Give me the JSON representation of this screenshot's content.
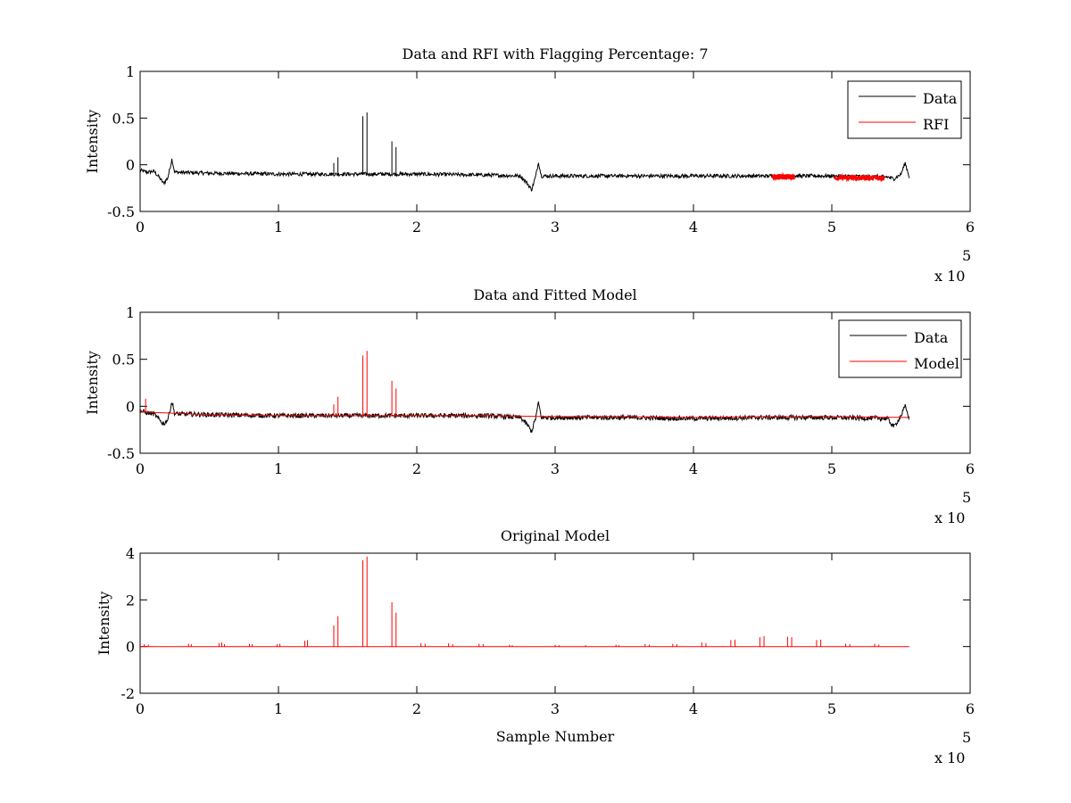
{
  "figure": {
    "exponent_label": "x 10",
    "exponent_power": "5"
  },
  "chart_data": [
    {
      "type": "line",
      "title": "Data and RFI with Flagging Percentage: 7",
      "xlabel": "",
      "ylabel": "Intensity",
      "xlim": [
        0,
        6
      ],
      "ylim": [
        -0.5,
        1
      ],
      "x_ticks": [
        "0",
        "1",
        "2",
        "3",
        "4",
        "5",
        "6"
      ],
      "y_ticks": [
        "-0.5",
        "0",
        "0.5",
        "1"
      ],
      "x_scale_note": "x 10^5",
      "grid": false,
      "legend_position": "top-right",
      "legend": [
        {
          "label": "Data",
          "color": "#000000"
        },
        {
          "label": "RFI",
          "color": "#ff0000"
        }
      ],
      "series": [
        {
          "name": "Data",
          "color": "#000000",
          "baseline": [
            [
              0.0,
              -0.06
            ],
            [
              0.05,
              -0.08
            ],
            [
              0.1,
              -0.07
            ],
            [
              0.13,
              -0.12
            ],
            [
              0.17,
              -0.2
            ],
            [
              0.2,
              -0.14
            ],
            [
              0.23,
              0.06
            ],
            [
              0.25,
              -0.08
            ],
            [
              0.5,
              -0.09
            ],
            [
              1.0,
              -0.1
            ],
            [
              1.5,
              -0.1
            ],
            [
              2.0,
              -0.1
            ],
            [
              2.5,
              -0.11
            ],
            [
              2.75,
              -0.12
            ],
            [
              2.8,
              -0.2
            ],
            [
              2.83,
              -0.27
            ],
            [
              2.86,
              -0.12
            ],
            [
              2.88,
              0.03
            ],
            [
              2.9,
              -0.12
            ],
            [
              3.5,
              -0.12
            ],
            [
              4.0,
              -0.12
            ],
            [
              4.5,
              -0.12
            ],
            [
              5.0,
              -0.12
            ],
            [
              5.4,
              -0.13
            ],
            [
              5.45,
              -0.15
            ],
            [
              5.5,
              -0.1
            ],
            [
              5.53,
              0.02
            ],
            [
              5.56,
              -0.13
            ]
          ],
          "noise": 0.02,
          "spikes": [
            [
              1.4,
              0.02
            ],
            [
              1.43,
              0.08
            ],
            [
              1.61,
              0.52
            ],
            [
              1.64,
              0.56
            ],
            [
              1.82,
              0.25
            ],
            [
              1.85,
              0.19
            ]
          ]
        },
        {
          "name": "RFI",
          "color": "#ff0000",
          "segments": [
            [
              4.57,
              4.73,
              -0.13
            ],
            [
              5.02,
              5.38,
              -0.14
            ]
          ],
          "noise": 0.03
        }
      ]
    },
    {
      "type": "line",
      "title": "Data and Fitted Model",
      "xlabel": "",
      "ylabel": "Intensity",
      "xlim": [
        0,
        6
      ],
      "ylim": [
        -0.5,
        1
      ],
      "x_ticks": [
        "0",
        "1",
        "2",
        "3",
        "4",
        "5",
        "6"
      ],
      "y_ticks": [
        "-0.5",
        "0",
        "0.5",
        "1"
      ],
      "x_scale_note": "x 10^5",
      "grid": false,
      "legend_position": "top-right",
      "legend": [
        {
          "label": "Data",
          "color": "#000000"
        },
        {
          "label": "Model",
          "color": "#ff0000"
        }
      ],
      "series": [
        {
          "name": "Data",
          "color": "#000000",
          "baseline": [
            [
              0.0,
              -0.05
            ],
            [
              0.05,
              -0.07
            ],
            [
              0.1,
              -0.08
            ],
            [
              0.13,
              -0.13
            ],
            [
              0.17,
              -0.19
            ],
            [
              0.2,
              -0.14
            ],
            [
              0.23,
              0.05
            ],
            [
              0.25,
              -0.08
            ],
            [
              0.5,
              -0.09
            ],
            [
              1.0,
              -0.1
            ],
            [
              1.5,
              -0.1
            ],
            [
              2.0,
              -0.1
            ],
            [
              2.5,
              -0.1
            ],
            [
              2.75,
              -0.12
            ],
            [
              2.8,
              -0.2
            ],
            [
              2.83,
              -0.27
            ],
            [
              2.86,
              -0.12
            ],
            [
              2.88,
              0.04
            ],
            [
              2.9,
              -0.12
            ],
            [
              3.5,
              -0.12
            ],
            [
              4.0,
              -0.13
            ],
            [
              4.5,
              -0.12
            ],
            [
              5.0,
              -0.12
            ],
            [
              5.4,
              -0.13
            ],
            [
              5.45,
              -0.22
            ],
            [
              5.5,
              -0.1
            ],
            [
              5.53,
              0.0
            ],
            [
              5.56,
              -0.13
            ]
          ],
          "noise": 0.025
        },
        {
          "name": "Model",
          "color": "#ff0000",
          "baseline": [
            [
              0.0,
              -0.06
            ],
            [
              0.5,
              -0.09
            ],
            [
              1.0,
              -0.1
            ],
            [
              1.5,
              -0.1
            ],
            [
              2.0,
              -0.1
            ],
            [
              2.5,
              -0.1
            ],
            [
              3.0,
              -0.11
            ],
            [
              3.5,
              -0.11
            ],
            [
              4.0,
              -0.12
            ],
            [
              4.5,
              -0.11
            ],
            [
              5.0,
              -0.11
            ],
            [
              5.56,
              -0.12
            ]
          ],
          "spikes": [
            [
              0.04,
              0.08
            ],
            [
              1.4,
              0.02
            ],
            [
              1.43,
              0.1
            ],
            [
              1.61,
              0.54
            ],
            [
              1.64,
              0.59
            ],
            [
              1.82,
              0.27
            ],
            [
              1.85,
              0.19
            ]
          ]
        }
      ]
    },
    {
      "type": "line",
      "title": "Original Model",
      "xlabel": "Sample Number",
      "ylabel": "Intensity",
      "xlim": [
        0,
        6
      ],
      "ylim": [
        -2,
        4
      ],
      "x_ticks": [
        "0",
        "1",
        "2",
        "3",
        "4",
        "5",
        "6"
      ],
      "y_ticks": [
        "-2",
        "0",
        "2",
        "4"
      ],
      "x_scale_note": "x 10^5",
      "grid": false,
      "series": [
        {
          "name": "",
          "color": "#ff0000",
          "baseline": [
            [
              0.0,
              0.0
            ],
            [
              5.56,
              0.0
            ]
          ],
          "spikes": [
            [
              0.03,
              0.1
            ],
            [
              0.06,
              0.08
            ],
            [
              0.35,
              0.12
            ],
            [
              0.37,
              0.1
            ],
            [
              0.57,
              0.15
            ],
            [
              0.59,
              0.18
            ],
            [
              0.61,
              0.1
            ],
            [
              0.79,
              0.12
            ],
            [
              0.81,
              0.1
            ],
            [
              0.99,
              0.1
            ],
            [
              1.01,
              0.12
            ],
            [
              1.19,
              0.25
            ],
            [
              1.21,
              0.28
            ],
            [
              1.4,
              0.9
            ],
            [
              1.43,
              1.3
            ],
            [
              1.61,
              3.7
            ],
            [
              1.64,
              3.85
            ],
            [
              1.82,
              1.9
            ],
            [
              1.85,
              1.45
            ],
            [
              2.03,
              0.15
            ],
            [
              2.06,
              0.12
            ],
            [
              2.23,
              0.14
            ],
            [
              2.26,
              0.1
            ],
            [
              2.45,
              0.12
            ],
            [
              2.48,
              0.1
            ],
            [
              2.67,
              0.08
            ],
            [
              2.69,
              0.06
            ],
            [
              3.0,
              0.08
            ],
            [
              3.03,
              0.06
            ],
            [
              3.22,
              0.06
            ],
            [
              3.44,
              0.08
            ],
            [
              3.46,
              0.06
            ],
            [
              3.65,
              0.1
            ],
            [
              3.68,
              0.08
            ],
            [
              3.85,
              0.12
            ],
            [
              3.88,
              0.1
            ],
            [
              4.06,
              0.18
            ],
            [
              4.09,
              0.15
            ],
            [
              4.27,
              0.28
            ],
            [
              4.3,
              0.3
            ],
            [
              4.48,
              0.4
            ],
            [
              4.51,
              0.45
            ],
            [
              4.68,
              0.42
            ],
            [
              4.71,
              0.4
            ],
            [
              4.89,
              0.28
            ],
            [
              4.92,
              0.3
            ],
            [
              5.1,
              0.12
            ],
            [
              5.13,
              0.1
            ],
            [
              5.31,
              0.12
            ],
            [
              5.34,
              0.08
            ]
          ]
        }
      ]
    }
  ]
}
